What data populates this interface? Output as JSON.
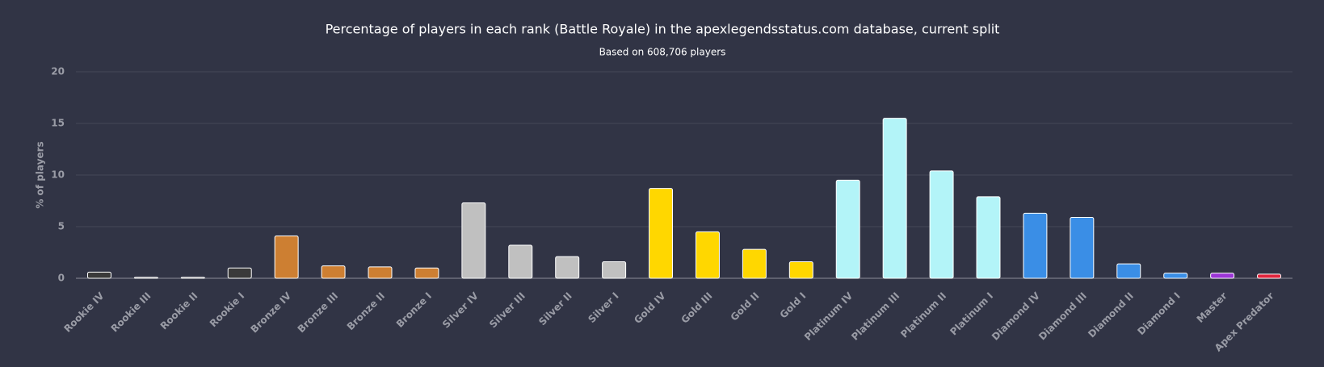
{
  "chart_data": {
    "type": "bar",
    "title": "Percentage of players in each rank (Battle Royale) in the apexlegendsstatus.com database, current split",
    "subtitle": "Based on 608,706 players",
    "y_label": "% of players",
    "categories": [
      "Rookie IV",
      "Rookie III",
      "Rookie II",
      "Rookie I",
      "Bronze IV",
      "Bronze III",
      "Bronze II",
      "Bronze I",
      "Silver IV",
      "Silver III",
      "Silver II",
      "Silver I",
      "Gold IV",
      "Gold III",
      "Gold II",
      "Gold I",
      "Platinum IV",
      "Platinum III",
      "Platinum II",
      "Platinum I",
      "Diamond IV",
      "Diamond III",
      "Diamond II",
      "Diamond I",
      "Master",
      "Apex Predator"
    ],
    "values": [
      0.6,
      0.1,
      0.1,
      1.0,
      4.1,
      1.2,
      1.1,
      1.0,
      7.3,
      3.2,
      2.1,
      1.6,
      8.7,
      4.5,
      2.8,
      1.6,
      9.5,
      15.5,
      10.4,
      7.9,
      6.3,
      5.9,
      1.4,
      0.5,
      0.5,
      0.4
    ],
    "colors": [
      "#3a3a3a",
      "#3a3a3a",
      "#3a3a3a",
      "#3a3a3a",
      "#cd7f32",
      "#cd7f32",
      "#cd7f32",
      "#cd7f32",
      "#c0c0c0",
      "#c0c0c0",
      "#c0c0c0",
      "#c0c0c0",
      "#ffd700",
      "#ffd700",
      "#ffd700",
      "#ffd700",
      "#b3f4f8",
      "#b3f4f8",
      "#b3f4f8",
      "#b3f4f8",
      "#3a8ee6",
      "#3a8ee6",
      "#3a8ee6",
      "#3a8ee6",
      "#9b35d6",
      "#e0243c"
    ],
    "ylim": [
      0,
      20
    ],
    "yticks": [
      0,
      5,
      10,
      15,
      20
    ],
    "grid": true
  }
}
